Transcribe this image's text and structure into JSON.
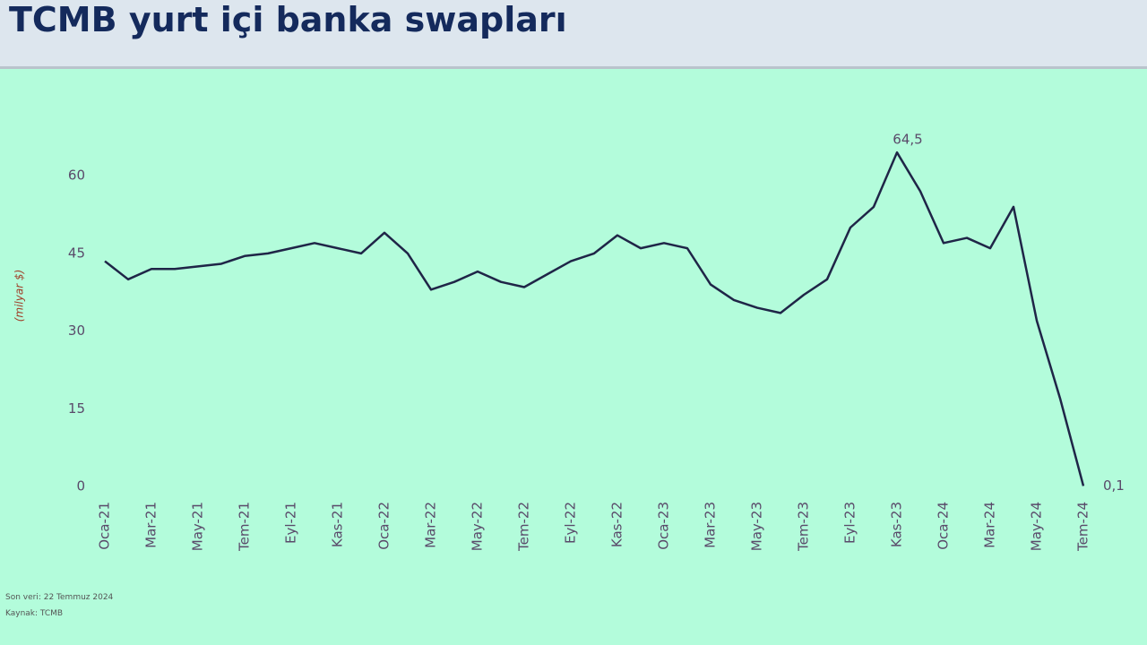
{
  "header": {
    "title": "TCMB yurt içi banka swapları"
  },
  "chart_data": {
    "type": "line",
    "categories": [
      "Oca-21",
      null,
      "Mar-21",
      null,
      "May-21",
      null,
      "Tem-21",
      null,
      "Eyl-21",
      null,
      "Kas-21",
      null,
      "Oca-22",
      null,
      "Mar-22",
      null,
      "May-22",
      null,
      "Tem-22",
      null,
      "Eyl-22",
      null,
      "Kas-22",
      null,
      "Oca-23",
      null,
      "Mar-23",
      null,
      "May-23",
      null,
      "Tem-23",
      null,
      "Eyl-23",
      null,
      "Kas-23",
      null,
      "Oca-24",
      null,
      "Mar-24",
      null,
      "May-24",
      null,
      "Tem-24"
    ],
    "values": [
      43.5,
      40,
      42,
      42,
      42.5,
      43,
      44.5,
      45,
      46,
      47,
      46,
      45,
      49,
      45,
      38,
      39.5,
      41.5,
      39.5,
      38.5,
      41,
      43.5,
      45,
      48.5,
      46,
      47,
      46,
      39,
      36,
      34.5,
      33.5,
      37,
      40,
      50,
      54,
      64.5,
      57,
      47,
      48,
      46,
      54,
      32,
      17,
      0.1
    ],
    "value_labels": [
      null,
      null,
      null,
      null,
      null,
      null,
      null,
      null,
      null,
      null,
      null,
      null,
      null,
      null,
      null,
      null,
      null,
      null,
      null,
      null,
      null,
      null,
      null,
      null,
      null,
      null,
      null,
      null,
      null,
      null,
      null,
      null,
      null,
      null,
      "64,5",
      null,
      null,
      null,
      null,
      null,
      null,
      null,
      "0,1"
    ],
    "color": "#1f2547",
    "ylabel": "(milyar $)",
    "ylim": [
      0,
      66
    ],
    "yticks": [
      0,
      15,
      30,
      45,
      60
    ],
    "grid": false
  },
  "footnotes": [
    "Son veri: 22 Temmuz 2024",
    "Kaynak: TCMB"
  ]
}
